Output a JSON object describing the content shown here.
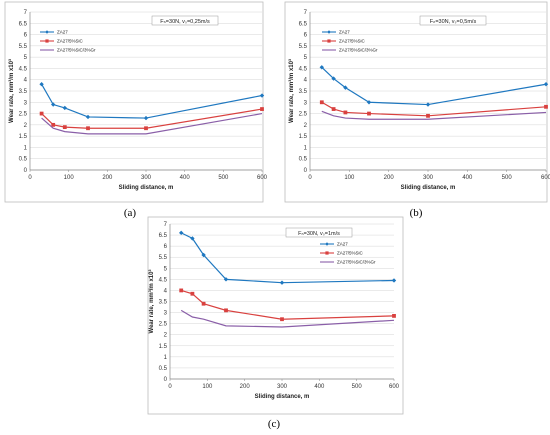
{
  "chart_data": [
    {
      "type": "line",
      "panel_label": "(a)",
      "condition_label": "Fₙ=30N, vₛ=0,25m/s",
      "xlabel": "Sliding distance, m",
      "ylabel": "Wear rate, mm³/m x10³",
      "xlim": [
        0,
        600
      ],
      "ylim": [
        0,
        7
      ],
      "xticks": [
        "0",
        "100",
        "200",
        "300",
        "400",
        "500",
        "600"
      ],
      "yticks": [
        "0",
        "0.5",
        "1",
        "1.5",
        "2",
        "2.5",
        "3",
        "3.5",
        "4",
        "4.5",
        "5",
        "5.5",
        "6",
        "6.5",
        "7"
      ],
      "grid": true,
      "legend_position": "top-left",
      "series": [
        {
          "name": "ZA27",
          "color": "#1f78c0",
          "marker": "diamond",
          "points": [
            [
              30,
              3.8
            ],
            [
              60,
              2.9
            ],
            [
              90,
              2.75
            ],
            [
              150,
              2.35
            ],
            [
              300,
              2.3
            ],
            [
              600,
              3.3
            ]
          ]
        },
        {
          "name": "ZA27/5%SiC",
          "color": "#d9413f",
          "marker": "square",
          "points": [
            [
              30,
              2.5
            ],
            [
              60,
              2.0
            ],
            [
              90,
              1.9
            ],
            [
              150,
              1.85
            ],
            [
              300,
              1.85
            ],
            [
              600,
              2.7
            ]
          ]
        },
        {
          "name": "ZA27/5%SiC/3%Gr",
          "color": "#8a5fa8",
          "marker": "none",
          "points": [
            [
              30,
              2.3
            ],
            [
              60,
              1.85
            ],
            [
              90,
              1.7
            ],
            [
              150,
              1.6
            ],
            [
              300,
              1.6
            ],
            [
              600,
              2.5
            ]
          ]
        }
      ]
    },
    {
      "type": "line",
      "panel_label": "(b)",
      "condition_label": "Fₙ=30N, vₛ=0,5m/s",
      "xlabel": "Sliding distance, m",
      "ylabel": "Wear rate, mm³/m x10³",
      "xlim": [
        0,
        600
      ],
      "ylim": [
        0,
        7
      ],
      "xticks": [
        "0",
        "100",
        "200",
        "300",
        "400",
        "500",
        "600"
      ],
      "yticks": [
        "0",
        "0.5",
        "1",
        "1.5",
        "2",
        "2.5",
        "3",
        "3.5",
        "4",
        "4.5",
        "5",
        "5.5",
        "6",
        "6.5",
        "7"
      ],
      "grid": true,
      "legend_position": "top-left",
      "series": [
        {
          "name": "ZA27",
          "color": "#1f78c0",
          "marker": "diamond",
          "points": [
            [
              30,
              4.55
            ],
            [
              60,
              4.05
            ],
            [
              90,
              3.65
            ],
            [
              150,
              3.0
            ],
            [
              300,
              2.9
            ],
            [
              600,
              3.8
            ]
          ]
        },
        {
          "name": "ZA27/5%SiC",
          "color": "#d9413f",
          "marker": "square",
          "points": [
            [
              30,
              3.0
            ],
            [
              60,
              2.7
            ],
            [
              90,
              2.55
            ],
            [
              150,
              2.5
            ],
            [
              300,
              2.4
            ],
            [
              600,
              2.8
            ]
          ]
        },
        {
          "name": "ZA27/5%SiC/3%Gr",
          "color": "#8a5fa8",
          "marker": "none",
          "points": [
            [
              30,
              2.6
            ],
            [
              60,
              2.4
            ],
            [
              90,
              2.3
            ],
            [
              150,
              2.25
            ],
            [
              300,
              2.25
            ],
            [
              600,
              2.55
            ]
          ]
        }
      ]
    },
    {
      "type": "line",
      "panel_label": "(c)",
      "condition_label": "Fₙ=30N, vₛ=1m/s",
      "xlabel": "Sliding distance, m",
      "ylabel": "Wear rate, mm³/m x10³",
      "xlim": [
        0,
        600
      ],
      "ylim": [
        0,
        7
      ],
      "xticks": [
        "0",
        "100",
        "200",
        "300",
        "400",
        "500",
        "600"
      ],
      "yticks": [
        "0",
        "0.5",
        "1",
        "1.5",
        "2",
        "2.5",
        "3",
        "3.5",
        "4",
        "4.5",
        "5",
        "5.5",
        "6",
        "6.5",
        "7"
      ],
      "grid": true,
      "legend_position": "top-right",
      "series": [
        {
          "name": "ZA27",
          "color": "#1f78c0",
          "marker": "diamond",
          "points": [
            [
              30,
              6.6
            ],
            [
              60,
              6.35
            ],
            [
              90,
              5.6
            ],
            [
              150,
              4.5
            ],
            [
              300,
              4.35
            ],
            [
              600,
              4.45
            ]
          ]
        },
        {
          "name": "ZA27/5%SiC",
          "color": "#d9413f",
          "marker": "square",
          "points": [
            [
              30,
              4.0
            ],
            [
              60,
              3.85
            ],
            [
              90,
              3.4
            ],
            [
              150,
              3.1
            ],
            [
              300,
              2.7
            ],
            [
              600,
              2.85
            ]
          ]
        },
        {
          "name": "ZA27/5%SiC/3%Gr",
          "color": "#8a5fa8",
          "marker": "none",
          "points": [
            [
              30,
              3.1
            ],
            [
              60,
              2.8
            ],
            [
              90,
              2.7
            ],
            [
              150,
              2.4
            ],
            [
              300,
              2.35
            ],
            [
              600,
              2.65
            ]
          ]
        }
      ]
    }
  ]
}
